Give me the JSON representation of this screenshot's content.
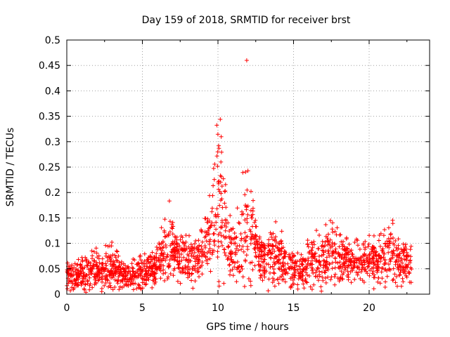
{
  "chart_data": {
    "type": "scatter",
    "title": "Day 159 of 2018, SRMTID for receiver brst",
    "xlabel": "GPS time / hours",
    "ylabel": "SRMTID / TECUs",
    "xlim": [
      0,
      24
    ],
    "ylim": [
      0,
      0.5
    ],
    "x_ticks": [
      0,
      5,
      10,
      15,
      20
    ],
    "y_ticks": [
      0,
      0.05,
      0.1,
      0.15,
      0.2,
      0.25,
      0.3,
      0.35,
      0.4,
      0.45,
      0.5
    ],
    "x_tick_labels": [
      "0",
      "5",
      "10",
      "15",
      "20"
    ],
    "y_tick_labels": [
      "0",
      "0.05",
      "0.1",
      "0.15",
      "0.2",
      "0.25",
      "0.3",
      "0.35",
      "0.4",
      "0.45",
      "0.5"
    ],
    "grid": true,
    "marker": "+",
    "series": [
      {
        "name": "SRMTID",
        "color": "#ff0000",
        "profile_hours": [
          0,
          1,
          2,
          3,
          4,
          5,
          5.8,
          6.3,
          6.8,
          7.3,
          8,
          8.8,
          9.3,
          9.7,
          10,
          10.3,
          10.6,
          11,
          11.5,
          11.8,
          12.1,
          12.5,
          13,
          13.8,
          14.5,
          15.5,
          16,
          17,
          17.8,
          18.5,
          19.5,
          20,
          20.5,
          21,
          21.5,
          22,
          22.5,
          22.8
        ],
        "profile_center": [
          0.035,
          0.04,
          0.045,
          0.05,
          0.035,
          0.04,
          0.05,
          0.08,
          0.1,
          0.075,
          0.065,
          0.075,
          0.11,
          0.15,
          0.19,
          0.16,
          0.11,
          0.08,
          0.1,
          0.15,
          0.14,
          0.085,
          0.07,
          0.075,
          0.055,
          0.045,
          0.06,
          0.07,
          0.085,
          0.065,
          0.06,
          0.07,
          0.065,
          0.075,
          0.08,
          0.06,
          0.055,
          0.06
        ],
        "profile_spread": [
          0.03,
          0.035,
          0.04,
          0.045,
          0.03,
          0.035,
          0.04,
          0.055,
          0.075,
          0.05,
          0.045,
          0.05,
          0.08,
          0.12,
          0.2,
          0.14,
          0.08,
          0.05,
          0.08,
          0.17,
          0.14,
          0.06,
          0.05,
          0.07,
          0.045,
          0.035,
          0.06,
          0.06,
          0.075,
          0.045,
          0.045,
          0.05,
          0.05,
          0.055,
          0.06,
          0.05,
          0.05,
          0.05
        ],
        "sample_count": 1900,
        "max_point": [
          11.9,
          0.46
        ]
      }
    ]
  }
}
